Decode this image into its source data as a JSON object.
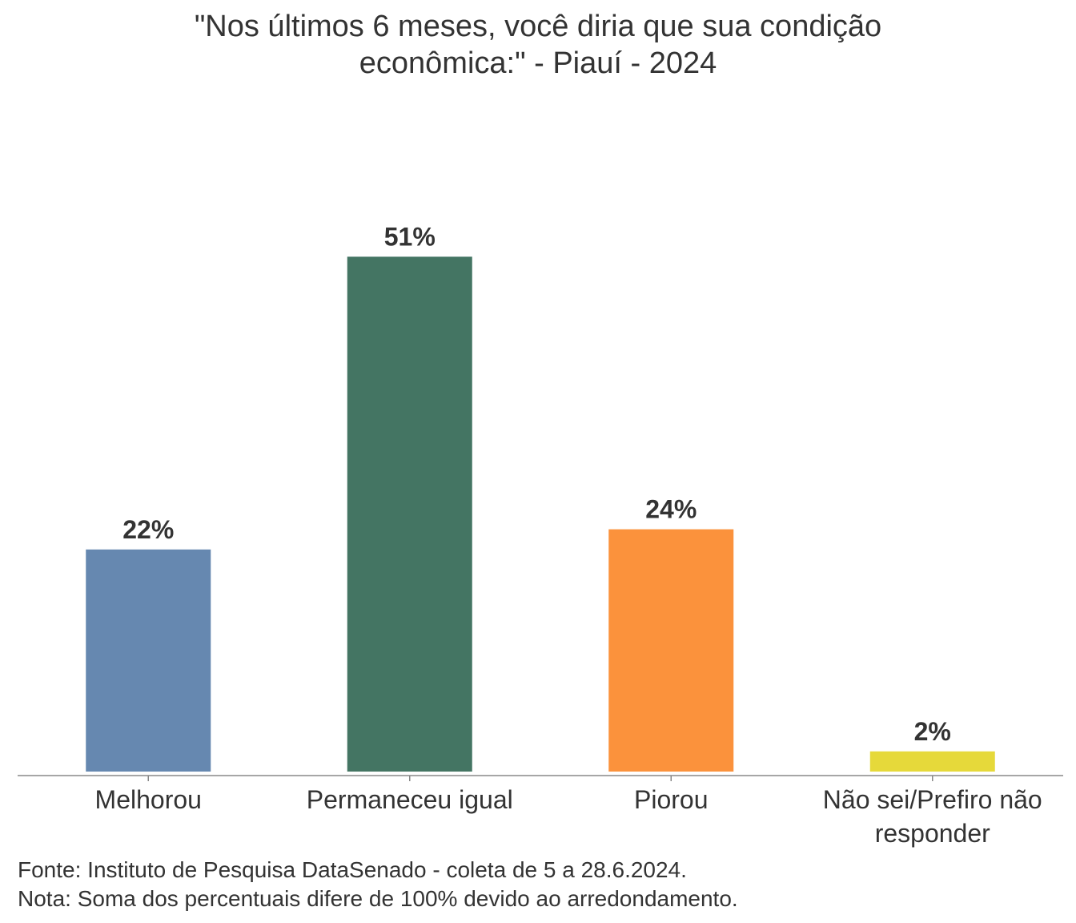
{
  "chart_data": {
    "type": "bar",
    "title_lines": [
      "\"Nos últimos 6 meses, você diria que sua condição",
      "econômica:\" - Piauí - 2024"
    ],
    "categories": [
      "Melhorou",
      "Permaneceu igual",
      "Piorou",
      "Não sei/Prefiro não responder"
    ],
    "category_label_lines": [
      [
        "Melhorou"
      ],
      [
        "Permaneceu igual"
      ],
      [
        "Piorou"
      ],
      [
        "Não sei/Prefiro não",
        "responder"
      ]
    ],
    "values": [
      22,
      51,
      24,
      2
    ],
    "value_labels": [
      "22%",
      "51%",
      "24%",
      "2%"
    ],
    "colors": [
      "#6688b0",
      "#447563",
      "#fb923c",
      "#e6d93a"
    ],
    "ylim": [
      0,
      55
    ],
    "grid": false,
    "legend": "none"
  },
  "footer": {
    "source": "Fonte: Instituto de Pesquisa DataSenado - coleta de 5 a 28.6.2024.",
    "note": "Nota: Soma dos percentuais difere de 100% devido ao arredondamento."
  }
}
